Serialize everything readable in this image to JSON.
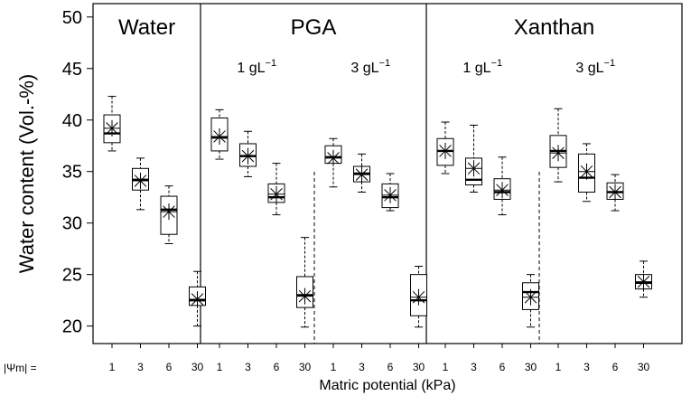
{
  "chart_data": {
    "type": "boxplot",
    "title": "",
    "ylabel": "Water content (Vol.-%)",
    "xlabel": "Matric potential (kPa)",
    "x_row_label": "|Ψm| =",
    "ylim": [
      18.3,
      51.3
    ],
    "yticks": [
      20,
      25,
      30,
      35,
      40,
      45,
      50
    ],
    "categories": [
      "1",
      "3",
      "6",
      "30"
    ],
    "panels": [
      {
        "label": "Water",
        "subgroups": [
          {
            "label_main": "",
            "label_exp": "",
            "boxes": [
              {
                "x": "1",
                "min": 37.0,
                "q1": 37.8,
                "median": 38.7,
                "q3": 40.5,
                "max": 42.3,
                "mean": 39.2
              },
              {
                "x": "3",
                "min": 31.3,
                "q1": 33.2,
                "median": 34.2,
                "q3": 35.3,
                "max": 36.3,
                "mean": 34.1
              },
              {
                "x": "6",
                "min": 28.0,
                "q1": 28.9,
                "median": 31.3,
                "q3": 32.6,
                "max": 33.6,
                "mean": 31.1
              },
              {
                "x": "30",
                "min": 20.0,
                "q1": 22.0,
                "median": 22.5,
                "q3": 23.8,
                "max": 25.3,
                "mean": 22.6
              }
            ]
          }
        ]
      },
      {
        "label": "PGA",
        "subgroups": [
          {
            "label_main": "1 gL",
            "label_exp": "−1",
            "boxes": [
              {
                "x": "1",
                "min": 36.2,
                "q1": 37.0,
                "median": 38.3,
                "q3": 40.2,
                "max": 41.0,
                "mean": 38.4
              },
              {
                "x": "3",
                "min": 34.5,
                "q1": 35.5,
                "median": 36.5,
                "q3": 37.7,
                "max": 38.9,
                "mean": 36.5
              },
              {
                "x": "6",
                "min": 30.8,
                "q1": 32.0,
                "median": 32.5,
                "q3": 33.8,
                "max": 35.8,
                "mean": 32.8
              },
              {
                "x": "30",
                "min": 19.9,
                "q1": 21.8,
                "median": 23.0,
                "q3": 24.8,
                "max": 28.6,
                "mean": 22.9
              }
            ]
          },
          {
            "label_main": "3 gL",
            "label_exp": "−1",
            "boxes": [
              {
                "x": "1",
                "min": 33.5,
                "q1": 35.8,
                "median": 36.4,
                "q3": 37.5,
                "max": 38.2,
                "mean": 36.3
              },
              {
                "x": "3",
                "min": 33.0,
                "q1": 34.0,
                "median": 34.8,
                "q3": 35.5,
                "max": 36.7,
                "mean": 34.7
              },
              {
                "x": "6",
                "min": 31.2,
                "q1": 31.5,
                "median": 32.5,
                "q3": 33.8,
                "max": 34.8,
                "mean": 32.7
              },
              {
                "x": "30",
                "min": 19.9,
                "q1": 21.0,
                "median": 22.5,
                "q3": 25.0,
                "max": 25.8,
                "mean": 22.8
              }
            ]
          }
        ]
      },
      {
        "label": "Xanthan",
        "subgroups": [
          {
            "label_main": "1 gL",
            "label_exp": "−1",
            "boxes": [
              {
                "x": "1",
                "min": 34.8,
                "q1": 35.6,
                "median": 37.0,
                "q3": 38.2,
                "max": 39.8,
                "mean": 37.0
              },
              {
                "x": "3",
                "min": 33.0,
                "q1": 33.7,
                "median": 34.2,
                "q3": 36.3,
                "max": 39.5,
                "mean": 35.3
              },
              {
                "x": "6",
                "min": 30.8,
                "q1": 32.3,
                "median": 33.0,
                "q3": 34.3,
                "max": 36.4,
                "mean": 33.2
              },
              {
                "x": "30",
                "min": 19.9,
                "q1": 21.6,
                "median": 23.3,
                "q3": 24.2,
                "max": 25.0,
                "mean": 22.8
              }
            ]
          },
          {
            "label_main": "3 gL",
            "label_exp": "−1",
            "boxes": [
              {
                "x": "1",
                "min": 34.0,
                "q1": 35.4,
                "median": 37.0,
                "q3": 38.5,
                "max": 41.1,
                "mean": 36.8
              },
              {
                "x": "3",
                "min": 32.1,
                "q1": 33.0,
                "median": 34.4,
                "q3": 36.7,
                "max": 37.7,
                "mean": 35.0
              },
              {
                "x": "6",
                "min": 31.2,
                "q1": 32.3,
                "median": 33.0,
                "q3": 33.9,
                "max": 34.7,
                "mean": 33.0
              },
              {
                "x": "30",
                "min": 22.8,
                "q1": 23.6,
                "median": 24.2,
                "q3": 25.0,
                "max": 26.3,
                "mean": 24.3
              }
            ]
          }
        ]
      }
    ]
  }
}
